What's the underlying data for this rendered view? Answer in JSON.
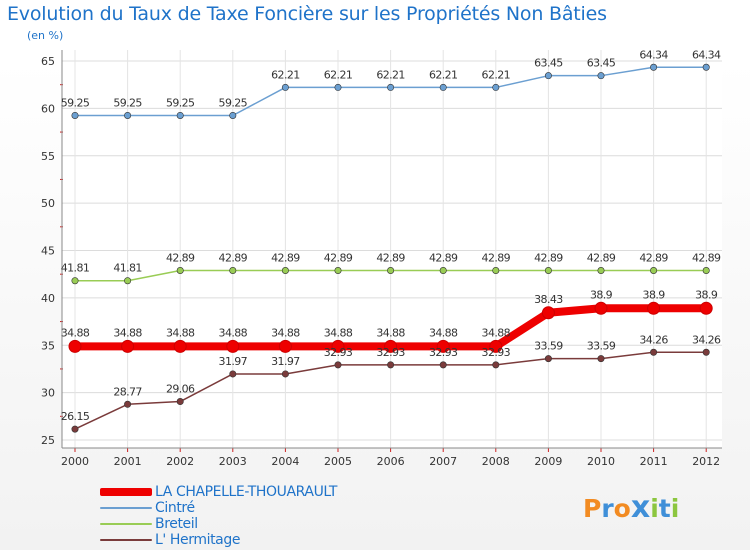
{
  "chart_data": {
    "type": "line",
    "title": "Evolution du Taux de Taxe Foncière sur les Propriétés Non Bâties",
    "subtitle": "(en %)",
    "categories": [
      "2000",
      "2001",
      "2002",
      "2003",
      "2004",
      "2005",
      "2006",
      "2007",
      "2008",
      "2009",
      "2010",
      "2011",
      "2012"
    ],
    "y_ticks": [
      "25",
      "30",
      "35",
      "40",
      "45",
      "50",
      "55",
      "60",
      "65"
    ],
    "ylim": [
      25,
      65
    ],
    "grid": true,
    "legend_position": "bottom-left",
    "series": [
      {
        "name": "LA CHAPELLE-THOUARAULT",
        "color": "#ee0000",
        "values": [
          34.88,
          34.88,
          34.88,
          34.88,
          34.88,
          34.88,
          34.88,
          34.88,
          34.88,
          38.43,
          38.9,
          38.9,
          38.9
        ],
        "labels": [
          "34.88",
          "34.88",
          "34.88",
          "34.88",
          "34.88",
          "34.88",
          "34.88",
          "34.88",
          "34.88",
          "38.43",
          "38.9",
          "38.9",
          "38.9"
        ]
      },
      {
        "name": "Cintré",
        "color": "#6b9fd1",
        "values": [
          59.25,
          59.25,
          59.25,
          59.25,
          62.21,
          62.21,
          62.21,
          62.21,
          62.21,
          63.45,
          63.45,
          64.34,
          64.34
        ],
        "labels": [
          "59.25",
          "59.25",
          "59.25",
          "59.25",
          "62.21",
          "62.21",
          "62.21",
          "62.21",
          "62.21",
          "63.45",
          "63.45",
          "64.34",
          "64.34"
        ]
      },
      {
        "name": "Breteil",
        "color": "#99cc55",
        "values": [
          41.81,
          41.81,
          42.89,
          42.89,
          42.89,
          42.89,
          42.89,
          42.89,
          42.89,
          42.89,
          42.89,
          42.89,
          42.89
        ],
        "labels": [
          "41.81",
          "41.81",
          "42.89",
          "42.89",
          "42.89",
          "42.89",
          "42.89",
          "42.89",
          "42.89",
          "42.89",
          "42.89",
          "42.89",
          "42.89"
        ]
      },
      {
        "name": "L' Hermitage",
        "color": "#7a3b3b",
        "values": [
          26.15,
          28.77,
          29.06,
          31.97,
          31.97,
          32.93,
          32.93,
          32.93,
          32.93,
          33.59,
          33.59,
          34.26,
          34.26
        ],
        "labels": [
          "26.15",
          "28.77",
          "29.06",
          "31.97",
          "31.97",
          "32.93",
          "32.93",
          "32.93",
          "32.93",
          "33.59",
          "33.59",
          "34.26",
          "34.26"
        ]
      }
    ]
  },
  "logo": {
    "text": "Proxiti",
    "letters": [
      "P",
      "r",
      "o",
      "x",
      "i",
      "t",
      "i"
    ],
    "colors": [
      "#f28b22",
      "#3f8fd8",
      "#f28b22",
      "#3f8fd8",
      "#8cc63f",
      "#3f8fd8",
      "#8cc63f"
    ]
  }
}
